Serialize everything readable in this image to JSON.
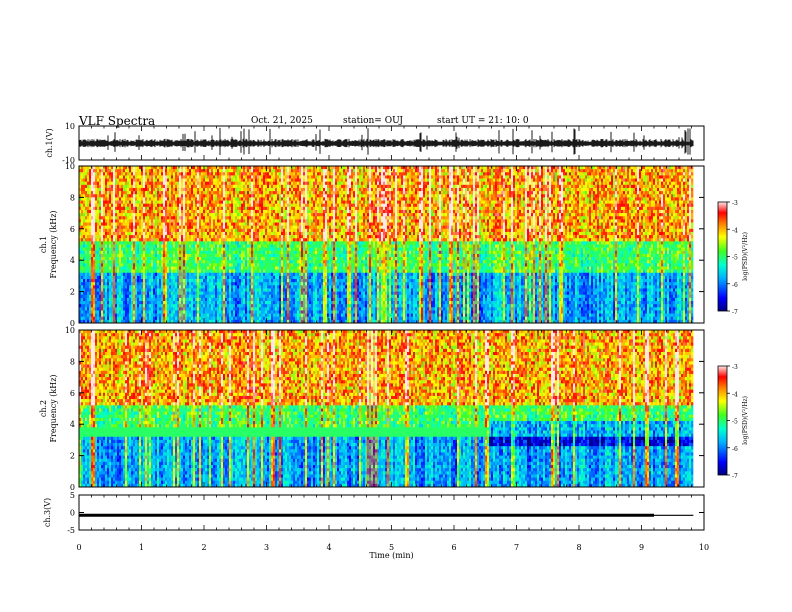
{
  "header": {
    "title": "VLF Spectra",
    "date": "Oct. 21, 2025",
    "station": "station= OUJ",
    "start_ut": "start UT =  21: 10: 0"
  },
  "chart_data": [
    {
      "type": "line",
      "panel": "ch1-waveform",
      "ylabel": "ch.1(V)",
      "ylim": [
        -10,
        10
      ],
      "yticks": [
        "10",
        "-10"
      ],
      "xlim": [
        0,
        10
      ],
      "series": [
        {
          "values": [
            -3,
            2
          ]
        }
      ]
    },
    {
      "type": "heatmap",
      "panel": "ch1-spectrogram",
      "ylabel_line1": "ch.1",
      "ylabel_line2": "Frequency (kHz)",
      "ylim": [
        0,
        10
      ],
      "yticks": [
        "0",
        "2",
        "4",
        "6",
        "8",
        "10"
      ],
      "xlim": [
        0,
        10
      ],
      "data_end_min": 9.83,
      "colorbar": {
        "label": "log(PSD)(V²/Hz)",
        "range": [
          -7,
          -3
        ],
        "ticks": [
          "-3",
          "-4",
          "-5",
          "-6",
          "-7"
        ]
      }
    },
    {
      "type": "heatmap",
      "panel": "ch2-spectrogram",
      "ylabel_line1": "ch.2",
      "ylabel_line2": "Frequency (kHz)",
      "ylim": [
        0,
        10
      ],
      "yticks": [
        "0",
        "2",
        "4",
        "6",
        "8",
        "10"
      ],
      "xlim": [
        0,
        10
      ],
      "data_end_min": 9.83,
      "band_end_min": 6.5,
      "band_khz": 3.5,
      "colorbar": {
        "label": "log(PSD)(V²/Hz)",
        "range": [
          -7,
          -3
        ],
        "ticks": [
          "-3",
          "-4",
          "-5",
          "-6",
          "-7"
        ]
      }
    },
    {
      "type": "line",
      "panel": "ch3-waveform",
      "ylabel": "ch.3(V)",
      "ylim": [
        -5,
        5
      ],
      "yticks": [
        "5",
        "0",
        "-5"
      ],
      "xlim": [
        0,
        10
      ],
      "xticks": [
        "0",
        "1",
        "2",
        "3",
        "4",
        "5",
        "6",
        "7",
        "8",
        "9",
        "10"
      ],
      "xlabel": "Time (min)",
      "series": [
        {
          "x": [
            0,
            9.83
          ],
          "values": [
            -0.8,
            -0.8
          ]
        }
      ]
    }
  ]
}
